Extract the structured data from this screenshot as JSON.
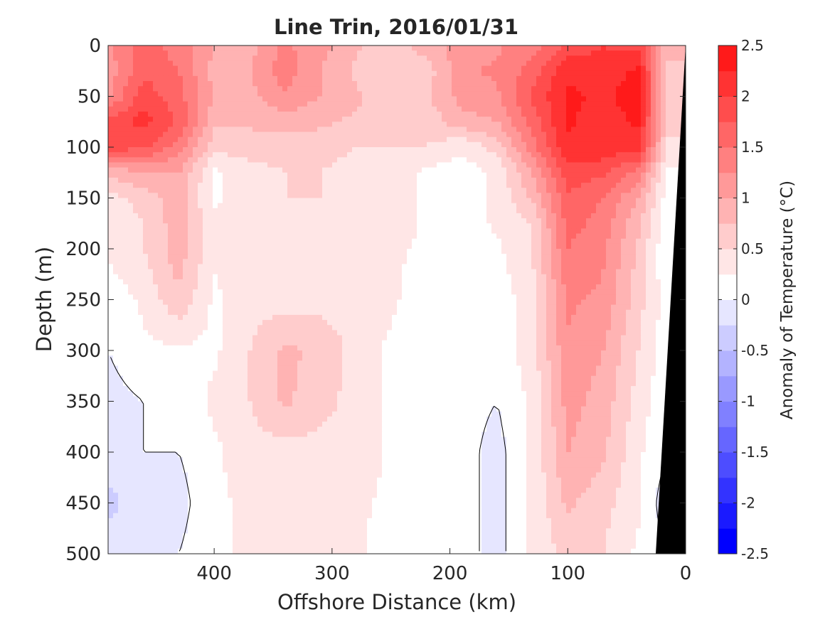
{
  "chart_data": {
    "type": "heatmap",
    "title": "Line Trin, 2016/01/31",
    "xlabel": "Offshore Distance (km)",
    "ylabel": "Depth (m)",
    "colorbar_label": "Anomaly of Temperature (°C)",
    "x_reversed": true,
    "y_reversed": true,
    "xlim": [
      0,
      490
    ],
    "ylim": [
      0,
      500
    ],
    "xticks": [
      400,
      300,
      200,
      100,
      0
    ],
    "yticks": [
      0,
      50,
      100,
      150,
      200,
      250,
      300,
      350,
      400,
      450,
      500
    ],
    "x": [
      490,
      460,
      430,
      400,
      370,
      340,
      310,
      280,
      250,
      220,
      190,
      160,
      130,
      100,
      70,
      40,
      15
    ],
    "y": [
      0,
      25,
      50,
      75,
      100,
      125,
      150,
      175,
      200,
      250,
      300,
      350,
      400,
      450,
      500
    ],
    "z": [
      [
        1.2,
        1.6,
        1.4,
        1.0,
        0.9,
        1.3,
        1.1,
        0.8,
        0.6,
        0.9,
        1.1,
        1.2,
        1.4,
        1.8,
        2.0,
        1.9,
        0.8
      ],
      [
        1.1,
        1.7,
        1.5,
        0.9,
        1.0,
        1.4,
        1.0,
        0.7,
        0.5,
        0.6,
        1.2,
        1.3,
        1.6,
        2.2,
        2.1,
        2.3,
        0.7
      ],
      [
        1.2,
        1.9,
        1.6,
        1.0,
        0.9,
        1.2,
        1.0,
        0.8,
        0.6,
        0.7,
        1.1,
        1.2,
        1.8,
        2.3,
        2.2,
        2.4,
        0.6
      ],
      [
        1.8,
        2.1,
        1.7,
        0.8,
        0.8,
        0.9,
        0.8,
        0.7,
        0.6,
        0.6,
        0.9,
        1.0,
        1.6,
        2.3,
        2.1,
        2.3,
        0.6
      ],
      [
        1.9,
        1.8,
        1.4,
        0.6,
        0.6,
        0.6,
        0.6,
        0.5,
        0.5,
        0.5,
        0.3,
        0.6,
        1.4,
        2.2,
        2.2,
        2.1,
        0.4
      ],
      [
        0.8,
        1.0,
        1.0,
        0.2,
        0.4,
        0.5,
        0.5,
        0.4,
        0.4,
        0.2,
        0.1,
        0.3,
        1.0,
        1.9,
        1.8,
        1.4,
        0.2
      ],
      [
        0.4,
        0.6,
        0.9,
        0.2,
        0.4,
        0.5,
        0.5,
        0.4,
        0.4,
        0.2,
        0.1,
        0.3,
        0.8,
        1.7,
        1.5,
        1.0,
        0.1
      ],
      [
        0.3,
        0.5,
        0.9,
        0.3,
        0.4,
        0.4,
        0.4,
        0.4,
        0.4,
        0.2,
        0.1,
        0.3,
        0.5,
        1.6,
        1.4,
        0.8,
        0.1
      ],
      [
        0.3,
        0.5,
        0.9,
        0.3,
        0.4,
        0.4,
        0.4,
        0.4,
        0.3,
        0.2,
        0.1,
        0.2,
        0.5,
        1.5,
        1.3,
        0.7,
        0.0
      ],
      [
        0.1,
        0.3,
        0.7,
        0.2,
        0.4,
        0.4,
        0.4,
        0.4,
        0.3,
        0.1,
        0.0,
        0.1,
        0.4,
        1.3,
        1.2,
        0.6,
        0.1
      ],
      [
        0.0,
        0.2,
        0.2,
        0.2,
        0.5,
        0.8,
        0.7,
        0.4,
        0.2,
        0.1,
        0.1,
        0.1,
        0.4,
        1.2,
        1.0,
        0.5,
        0.1
      ],
      [
        -0.1,
        0.0,
        0.1,
        0.3,
        0.5,
        0.8,
        0.6,
        0.4,
        0.2,
        0.1,
        0.1,
        0.0,
        0.3,
        1.1,
        0.9,
        0.4,
        0.0
      ],
      [
        0.0,
        0.0,
        0.0,
        0.2,
        0.4,
        0.4,
        0.4,
        0.4,
        0.2,
        0.1,
        0.1,
        -0.1,
        0.3,
        1.0,
        0.8,
        0.3,
        0.0
      ],
      [
        -0.4,
        0.0,
        -0.1,
        0.2,
        0.3,
        0.3,
        0.3,
        0.3,
        0.2,
        0.1,
        0.1,
        -0.1,
        0.3,
        0.8,
        0.6,
        0.3,
        -0.2
      ],
      [
        0.0,
        -0.1,
        0.0,
        0.2,
        0.3,
        0.3,
        0.3,
        0.3,
        0.1,
        0.1,
        0.1,
        -0.1,
        0.3,
        0.6,
        0.5,
        0.2,
        0.0
      ]
    ],
    "colorbar": {
      "levels": [
        -2.5,
        -2.25,
        -2.0,
        -1.75,
        -1.5,
        -1.25,
        -1.0,
        -0.75,
        -0.5,
        -0.25,
        0,
        0.25,
        0.5,
        0.75,
        1.0,
        1.25,
        1.5,
        1.75,
        2.0,
        2.25,
        2.5
      ],
      "ticks": [
        2.5,
        2,
        1.5,
        1,
        0.5,
        0,
        -0.5,
        -1,
        -1.5,
        -2,
        -2.5
      ],
      "tick_labels": [
        "2.5",
        "2",
        "1.5",
        "1",
        "0.5",
        "0",
        "-0.5",
        "-1",
        "-1.5",
        "-2",
        "-2.5"
      ],
      "colors": [
        "#0000ff",
        "#1a1aff",
        "#3333ff",
        "#4d4dff",
        "#6666ff",
        "#8080ff",
        "#9999ff",
        "#b3b3ff",
        "#ccccff",
        "#e6e6ff",
        "#ffffff",
        "#ffe6e6",
        "#ffcccc",
        "#ffb3b3",
        "#ff9999",
        "#ff8080",
        "#ff6666",
        "#ff4d4d",
        "#ff3333",
        "#ff1a1a"
      ]
    },
    "zero_contour": true,
    "bathymetry_color": "#000000",
    "grid": false
  }
}
